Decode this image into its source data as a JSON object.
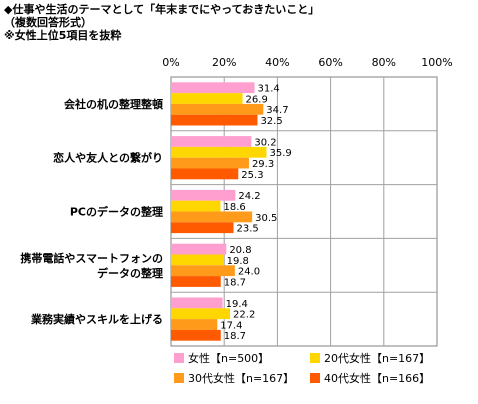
{
  "header": {
    "title": "◆仕事や生活のテーマとして「年末までにやっておきたいこと」",
    "subtitle": "（複数回答形式）",
    "note": "※女性上位5項目を抜粋"
  },
  "chart_data": {
    "type": "bar",
    "orientation": "horizontal",
    "title": "◆仕事や生活のテーマとして「年末までにやっておきたいこと」",
    "subtitle": "（複数回答形式）",
    "note": "※女性上位5項目を抜粋",
    "xlim": [
      0,
      100
    ],
    "x_ticks": [
      "0%",
      "20%",
      "40%",
      "60%",
      "80%",
      "100%"
    ],
    "grid": true,
    "legend_position": "bottom-right",
    "categories": [
      "会社の机の整理整頓",
      "恋人や友人との繋がり",
      "PCのデータの整理",
      "携帯電話やスマートフォンの\nデータの整理",
      "業務実績やスキルを上げる"
    ],
    "series": [
      {
        "name": "女性【n=500】",
        "color": "#ff9fd0",
        "values": [
          31.4,
          30.2,
          24.2,
          20.8,
          19.4
        ]
      },
      {
        "name": "20代女性【n=167】",
        "color": "#ffd700",
        "values": [
          26.9,
          35.9,
          18.6,
          19.8,
          22.2
        ]
      },
      {
        "name": "30代女性【n=167】",
        "color": "#ff9a1a",
        "values": [
          34.7,
          29.3,
          30.5,
          24.0,
          17.4
        ]
      },
      {
        "name": "40代女性【n=166】",
        "color": "#ff5a00",
        "values": [
          32.5,
          25.3,
          23.5,
          18.7,
          18.7
        ]
      }
    ],
    "value_labels": [
      [
        "31.4",
        "30.2",
        "24.2",
        "20.8",
        "19.4"
      ],
      [
        "26.9",
        "35.9",
        "18.6",
        "19.8",
        "22.2"
      ],
      [
        "34.7",
        "29.3",
        "30.5",
        "24.0",
        "17.4"
      ],
      [
        "32.5",
        "25.3",
        "23.5",
        "18.7",
        "18.7"
      ]
    ]
  }
}
